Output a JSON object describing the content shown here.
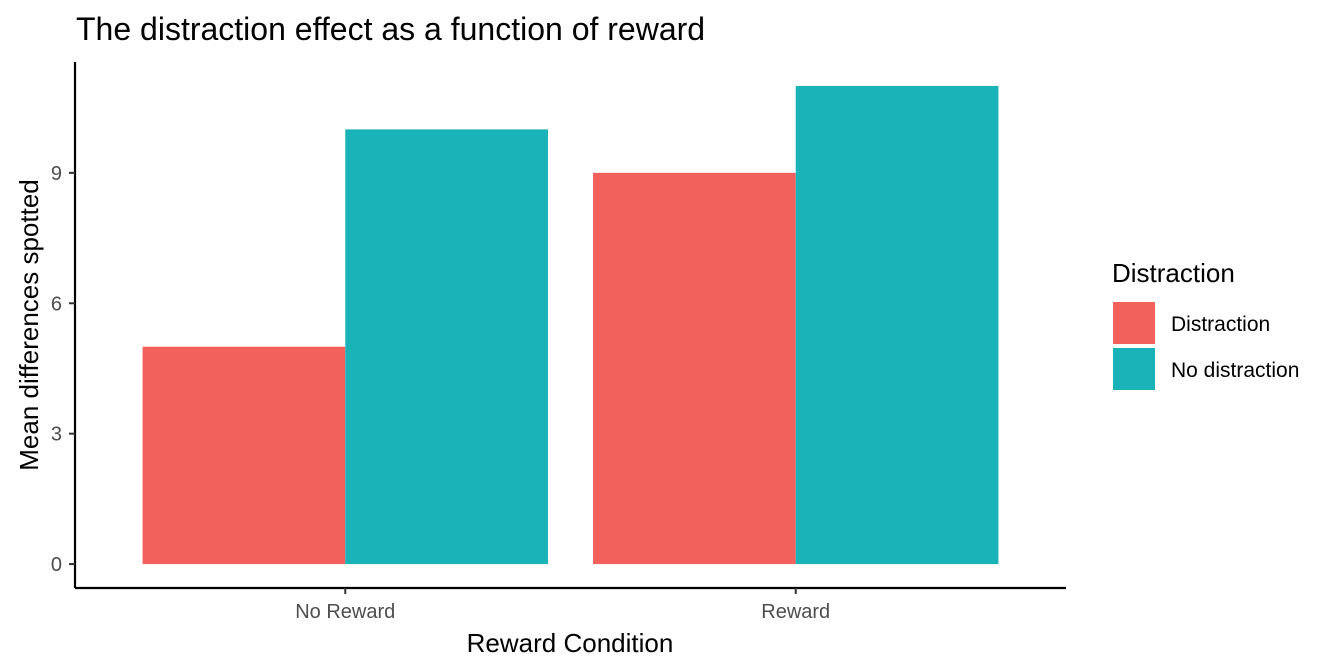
{
  "chart_data": {
    "type": "bar",
    "title": "The distraction effect as a function of reward",
    "xlabel": "Reward Condition",
    "ylabel": "Mean differences spotted",
    "categories": [
      "No Reward",
      "Reward"
    ],
    "series": [
      {
        "name": "Distraction",
        "values": [
          5,
          9
        ],
        "color": "#F2615C"
      },
      {
        "name": "No distraction",
        "values": [
          10,
          11
        ],
        "color": "#1AB3B8"
      }
    ],
    "yticks": [
      0,
      3,
      6,
      9
    ],
    "ylim": [
      -0.55,
      11.55
    ],
    "grid": false,
    "legend": {
      "title": "Distraction",
      "placement": "right"
    }
  }
}
